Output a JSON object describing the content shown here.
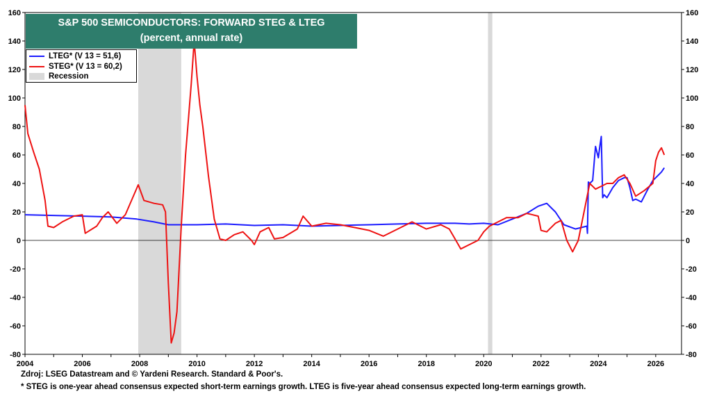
{
  "chart_data": {
    "type": "line",
    "title": "S&P 500 SEMICONDUCTORS: FORWARD STEG & LTEG",
    "subtitle": "(percent, annual rate)",
    "xlim": [
      2004,
      2026.9
    ],
    "ylim": [
      -80,
      160
    ],
    "y_ticks": [
      "160",
      "140",
      "120",
      "100",
      "80",
      "60",
      "40",
      "20",
      "0",
      "-20",
      "-40",
      "-60",
      "-80"
    ],
    "x_ticks": [
      "2004",
      "2006",
      "2008",
      "2010",
      "2012",
      "2014",
      "2016",
      "2018",
      "2020",
      "2022",
      "2024",
      "2026"
    ],
    "y_axes": "left and right",
    "grid": false,
    "zero_line": true,
    "legend_placement": "top-left",
    "legend": {
      "lteg": "LTEG* (V 13 = 51,6)",
      "steg": "STEG* (V 13 = 60,2)",
      "recession": "Recession"
    },
    "recessions": [
      [
        2007.95,
        2009.45
      ],
      [
        2020.15,
        2020.3
      ]
    ],
    "series": [
      {
        "name": "LTEG* (V 13 = 51,6)",
        "color": "#1a1aff",
        "x": [
          2004.0,
          2005.0,
          2006.0,
          2007.0,
          2007.9,
          2008.5,
          2009.0,
          2010.0,
          2011.0,
          2012.0,
          2013.0,
          2014.0,
          2015.0,
          2016.0,
          2017.0,
          2018.0,
          2019.0,
          2019.5,
          2020.0,
          2020.5,
          2021.0,
          2021.5,
          2021.9,
          2022.2,
          2022.5,
          2022.8,
          2023.2,
          2023.6,
          2023.62,
          2023.65,
          2023.7,
          2023.8,
          2023.9,
          2024.0,
          2024.05,
          2024.1,
          2024.15,
          2024.2,
          2024.3,
          2024.5,
          2024.7,
          2024.9,
          2025.0,
          2025.1,
          2025.2,
          2025.3,
          2025.5,
          2025.7,
          2025.9,
          2026.0,
          2026.2,
          2026.3
        ],
        "y": [
          18,
          17.5,
          17,
          16.5,
          15,
          13,
          11,
          11,
          11.5,
          10.5,
          11,
          10,
          10.5,
          11,
          11.5,
          12,
          12,
          11.5,
          12,
          11,
          15,
          19,
          24,
          26,
          20,
          11,
          8,
          10,
          5,
          41,
          40,
          42,
          66,
          58,
          66,
          73,
          30,
          32,
          30,
          37,
          42,
          44,
          44,
          37,
          28,
          29,
          27,
          35,
          42,
          44,
          48,
          51
        ]
      },
      {
        "name": "STEG* (V 13 = 60,2)",
        "color": "#ee1111",
        "x": [
          2004.0,
          2004.1,
          2004.3,
          2004.5,
          2004.7,
          2004.8,
          2005.0,
          2005.3,
          2005.7,
          2006.0,
          2006.1,
          2006.5,
          2006.7,
          2006.9,
          2007.2,
          2007.5,
          2007.8,
          2007.95,
          2008.15,
          2008.5,
          2008.8,
          2008.9,
          2009.0,
          2009.1,
          2009.2,
          2009.3,
          2009.45,
          2009.6,
          2009.8,
          2009.9,
          2010.0,
          2010.1,
          2010.2,
          2010.4,
          2010.6,
          2010.8,
          2011.0,
          2011.3,
          2011.6,
          2011.9,
          2012.0,
          2012.2,
          2012.5,
          2012.7,
          2013.0,
          2013.5,
          2013.7,
          2014.0,
          2014.5,
          2015.0,
          2015.5,
          2016.0,
          2016.5,
          2017.0,
          2017.5,
          2018.0,
          2018.5,
          2018.8,
          2019.0,
          2019.2,
          2019.5,
          2019.8,
          2020.0,
          2020.2,
          2020.5,
          2020.8,
          2021.2,
          2021.5,
          2021.9,
          2022.0,
          2022.2,
          2022.5,
          2022.7,
          2022.9,
          2023.1,
          2023.3,
          2023.5,
          2023.7,
          2023.9,
          2024.1,
          2024.3,
          2024.5,
          2024.7,
          2024.9,
          2025.1,
          2025.3,
          2025.6,
          2025.9,
          2026.0,
          2026.1,
          2026.2,
          2026.3
        ],
        "y": [
          95,
          75,
          62,
          50,
          28,
          10,
          9,
          13,
          17,
          18,
          5,
          10,
          16,
          20,
          12,
          18,
          32,
          39,
          28,
          26,
          25,
          20,
          -30,
          -72,
          -65,
          -50,
          10,
          60,
          110,
          140,
          115,
          95,
          80,
          45,
          15,
          1,
          0,
          4,
          6,
          0,
          -3,
          6,
          9,
          1,
          2,
          8,
          17,
          10,
          12,
          11,
          9,
          7,
          3,
          8,
          13,
          8,
          11,
          8,
          1,
          -6,
          -3,
          0,
          6,
          10,
          13,
          16,
          16,
          19,
          17,
          7,
          6,
          12,
          14,
          0,
          -8,
          0,
          20,
          40,
          36,
          38,
          40,
          40,
          44,
          46,
          40,
          31,
          35,
          40,
          56,
          62,
          65,
          60
        ]
      }
    ],
    "source": "Zdroj: LSEG Datastream and © Yardeni Research. Standard & Poor's.",
    "footnote": "* STEG is one-year ahead consensus expected short-term earnings growth. LTEG is five-year ahead consensus expected long-term earnings growth."
  },
  "colors": {
    "title_bg": "#2e7d6c",
    "recession": "#d9d9d9"
  }
}
